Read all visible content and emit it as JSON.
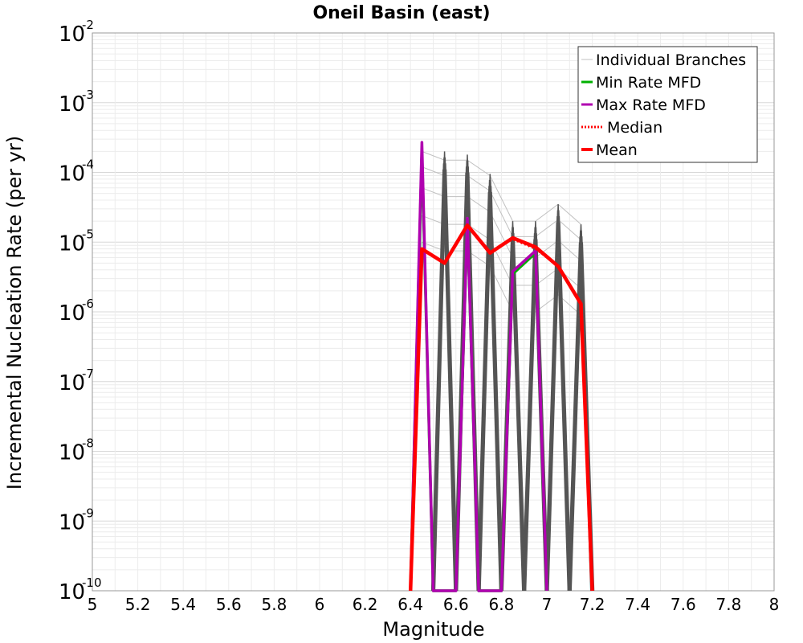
{
  "chart_data": {
    "type": "line",
    "title": "Oneil Basin (east)",
    "xlabel": "Magnitude",
    "ylabel": "Incremental Nucleation Rate (per yr)",
    "xlim": [
      5.0,
      8.0
    ],
    "ylim": [
      1e-10,
      0.01
    ],
    "yscale": "log",
    "grid": true,
    "legend_position": "top-right",
    "x_ticks": [
      "5",
      "5.2",
      "5.4",
      "5.6",
      "5.8",
      "6",
      "6.2",
      "6.4",
      "6.6",
      "6.8",
      "7",
      "7.2",
      "7.4",
      "7.6",
      "7.8",
      "8"
    ],
    "y_ticks": [
      {
        "base": "10",
        "exp": "-10",
        "value": 1e-10
      },
      {
        "base": "10",
        "exp": "-9",
        "value": 1e-09
      },
      {
        "base": "10",
        "exp": "-8",
        "value": 1e-08
      },
      {
        "base": "10",
        "exp": "-7",
        "value": 1e-07
      },
      {
        "base": "10",
        "exp": "-6",
        "value": 1e-06
      },
      {
        "base": "10",
        "exp": "-5",
        "value": 1e-05
      },
      {
        "base": "10",
        "exp": "-4",
        "value": 0.0001
      },
      {
        "base": "10",
        "exp": "-3",
        "value": 0.001
      },
      {
        "base": "10",
        "exp": "-2",
        "value": 0.01
      }
    ],
    "series": [
      {
        "name": "Individual Branches",
        "color": "#c0c0c0",
        "style": "thin-solid",
        "x": [
          6.45,
          6.55,
          6.65,
          6.75,
          6.85,
          6.95,
          7.05,
          7.15
        ],
        "values": [
          0.0002,
          0.00015,
          0.00015,
          9e-05,
          2e-05,
          2e-05,
          3.5e-05,
          1.8e-05
        ]
      },
      {
        "name": "Min Rate MFD",
        "color": "#00b000",
        "style": "solid",
        "x": [
          6.4,
          6.45,
          6.5,
          6.6,
          6.65,
          6.7,
          6.8,
          6.85,
          6.95,
          7.0
        ],
        "values": [
          1e-10,
          0.0002,
          1e-10,
          1e-10,
          2e-05,
          1e-10,
          1e-10,
          3.5e-06,
          7e-06,
          1e-10
        ]
      },
      {
        "name": "Max Rate MFD",
        "color": "#b000b0",
        "style": "solid",
        "x": [
          6.4,
          6.45,
          6.5,
          6.6,
          6.65,
          6.7,
          6.8,
          6.85,
          6.95,
          7.0
        ],
        "values": [
          1e-10,
          0.00027,
          1e-10,
          1e-10,
          2.2e-05,
          1e-10,
          1e-10,
          3.8e-06,
          7.5e-06,
          1e-10
        ]
      },
      {
        "name": "Median",
        "color": "#ff0000",
        "style": "dotted",
        "x": [
          6.45,
          6.55,
          6.65,
          6.75,
          6.85,
          6.95,
          7.05,
          7.15
        ],
        "values": [
          8e-06,
          5e-06,
          1.7e-05,
          7e-06,
          1.1e-05,
          8e-06,
          4.5e-06,
          1.3e-06
        ]
      },
      {
        "name": "Mean",
        "color": "#ff0000",
        "style": "thick-solid",
        "x": [
          6.4,
          6.45,
          6.55,
          6.65,
          6.75,
          6.85,
          6.95,
          7.05,
          7.15,
          7.2
        ],
        "values": [
          1e-10,
          8e-06,
          5e-06,
          1.75e-05,
          7e-06,
          1.15e-05,
          8.5e-06,
          4.5e-06,
          1.3e-06,
          1e-10
        ]
      }
    ],
    "branch_spikes": {
      "color": "#555555",
      "peaks": [
        {
          "x": 6.55,
          "value": 0.0002
        },
        {
          "x": 6.65,
          "value": 0.00018
        },
        {
          "x": 6.75,
          "value": 9.5e-05
        },
        {
          "x": 6.85,
          "value": 2e-05
        },
        {
          "x": 6.95,
          "value": 2e-05
        },
        {
          "x": 7.05,
          "value": 3.5e-05
        },
        {
          "x": 7.15,
          "value": 1.8e-05
        }
      ]
    }
  }
}
